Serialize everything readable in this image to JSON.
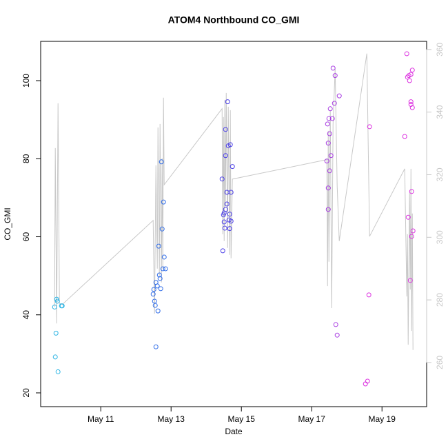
{
  "chart_data": {
    "type": "scatter",
    "title": "ATOM4 Northbound CO_GMI",
    "xlabel": "Date",
    "ylabel": "CO_GMI",
    "xlim": [
      9.29,
      20.27
    ],
    "xticks": [
      {
        "value": 11,
        "label": "May 11"
      },
      {
        "value": 13,
        "label": "May 13"
      },
      {
        "value": 15,
        "label": "May 15"
      },
      {
        "value": 17,
        "label": "May 17"
      },
      {
        "value": 19,
        "label": "May 19"
      }
    ],
    "ylim": [
      16.47,
      110.07
    ],
    "yticks": [
      20,
      40,
      60,
      80,
      100
    ],
    "y2lim": [
      245.9,
      362.6
    ],
    "y2ticks": [
      260,
      280,
      300,
      320,
      340,
      360
    ],
    "y2color": "#c8c8c8",
    "series": [
      {
        "type": "line",
        "axis": "y2",
        "color": "#c8c8c8",
        "x": [
          9.686,
          9.706,
          9.745,
          9.784,
          9.824,
          9.902,
          12.49,
          12.529,
          12.569,
          12.608,
          12.627,
          12.667,
          12.686,
          12.725,
          12.745,
          12.765,
          12.784,
          12.804,
          14.451,
          14.471,
          14.49,
          14.51,
          14.529,
          14.549,
          14.569,
          14.608,
          14.627,
          14.667,
          14.686,
          14.706,
          14.745,
          17.431,
          17.451,
          17.471,
          17.49,
          17.529,
          17.569,
          17.608,
          17.667,
          17.725,
          17.784,
          18.569,
          18.647,
          19.647,
          19.706,
          19.725,
          19.745,
          19.784,
          19.804,
          19.824,
          19.843,
          19.863,
          19.882
        ],
        "values": [
          277.8,
          328.5,
          272.5,
          342.8,
          278.9,
          278.5,
          305.4,
          275.6,
          323.0,
          290.0,
          335.1,
          287.8,
          336.2,
          285.6,
          325.2,
          290.0,
          344.6,
          316.8,
          341.1,
          301.0,
          338.4,
          298.8,
          343.9,
          309.8,
          346.1,
          296.6,
          341.7,
          294.4,
          340.6,
          293.3,
          318.6,
          324.8,
          284.4,
          334.0,
          292.2,
          340.6,
          277.4,
          336.2,
          353.8,
          316.4,
          298.8,
          358.7,
          300.3,
          321.9,
          281.1,
          301.0,
          265.7,
          314.2,
          283.3,
          321.9,
          270.1,
          307.6,
          264.0
        ]
      },
      {
        "type": "scatter",
        "color": "#2ab4e4",
        "x": [
          9.686,
          9.706,
          9.726,
          9.745,
          9.765,
          9.784,
          9.882,
          9.902
        ],
        "values": [
          42.0,
          29.2,
          35.3,
          44.0,
          43.5,
          25.4,
          42.3,
          42.3
        ]
      },
      {
        "type": "scatter",
        "color": "#2f6ce8",
        "x": [
          12.49,
          12.51,
          12.529,
          12.549,
          12.569,
          12.569,
          12.608,
          12.627,
          12.647,
          12.667,
          12.686,
          12.706,
          12.725,
          12.745,
          12.765,
          12.804,
          12.784,
          12.843
        ],
        "values": [
          45.3,
          46.5,
          43.5,
          42.4,
          31.8,
          48.3,
          47.4,
          41.0,
          57.6,
          50.2,
          49.3,
          46.7,
          79.2,
          62.0,
          51.8,
          54.8,
          68.9,
          51.8
        ]
      },
      {
        "type": "scatter",
        "color": "#4a3ee8",
        "x": [
          14.451,
          14.471,
          14.49,
          14.51,
          14.51,
          14.529,
          14.549,
          14.549,
          14.549,
          14.588,
          14.588,
          14.608,
          14.627,
          14.647,
          14.667,
          14.667,
          14.686,
          14.706,
          14.706,
          14.745
        ],
        "values": [
          74.8,
          56.4,
          65.6,
          66.1,
          63.8,
          62.2,
          80.8,
          67.0,
          87.5,
          71.4,
          68.4,
          94.6,
          83.3,
          64.3,
          62.1,
          65.8,
          83.6,
          71.4,
          64.0,
          78.0
        ]
      },
      {
        "type": "scatter",
        "color": "#a83ce2",
        "x": [
          17.431,
          17.451,
          17.471,
          17.471,
          17.471,
          17.49,
          17.51,
          17.51,
          17.529,
          17.549,
          17.588,
          17.608,
          17.647,
          17.667,
          17.686,
          17.725,
          17.784
        ],
        "values": [
          79.4,
          88.9,
          84.0,
          72.5,
          67.0,
          90.3,
          86.4,
          76.9,
          92.8,
          80.8,
          90.3,
          103.2,
          94.2,
          101.3,
          37.5,
          34.8,
          96.1
        ]
      },
      {
        "type": "scatter",
        "color": "#dc30e0",
        "x": [
          18.529,
          18.588,
          18.627,
          18.647,
          19.647,
          19.706,
          19.725,
          19.745,
          19.765,
          19.784,
          19.804,
          19.824,
          19.824,
          19.824,
          19.843,
          19.843,
          19.863,
          19.863,
          19.882
        ],
        "values": [
          22.3,
          23.0,
          45.1,
          88.2,
          85.7,
          106.9,
          100.9,
          65.0,
          101.3,
          100.0,
          48.8,
          94.6,
          101.6,
          93.9,
          71.6,
          60.1,
          93.1,
          102.7,
          61.5
        ]
      }
    ]
  }
}
